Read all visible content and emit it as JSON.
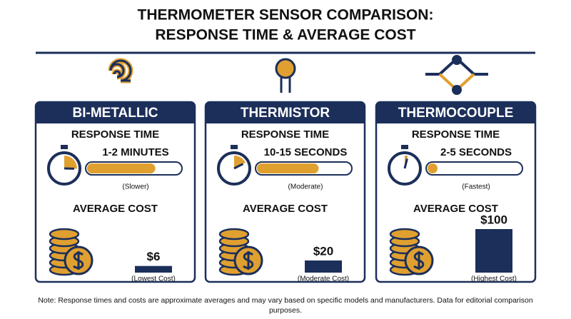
{
  "header": {
    "title_lines": [
      "THERMOMETER SENSOR COMPARISON:",
      "RESPONSE TIME & AVERAGE COST"
    ]
  },
  "cards": [
    {
      "name": "BI-METALLIC",
      "response_label": "RESPONSE TIME",
      "response_value": "1-2 MINUTES",
      "response_note": "(Slower)",
      "cost_label": "AVERAGE COST",
      "cost": {
        "value": 6,
        "label": "$6"
      },
      "cost_note": "(Lowest Cost)"
    },
    {
      "name": "THERMISTOR",
      "response_label": "RESPONSE TIME",
      "response_value": "10-15 SECONDS",
      "response_note": "(Moderate)",
      "cost_label": "AVERAGE COST",
      "cost": {
        "value": 20,
        "label": "$20"
      },
      "cost_note": "(Moderate Cost)"
    },
    {
      "name": "THERMOCOUPLE",
      "response_label": "RESPONSE TIME",
      "response_value": "2-5 SECONDS",
      "response_note": "(Fastest)",
      "cost_label": "AVERAGE COST",
      "cost": {
        "value": 100,
        "label": "$100"
      },
      "cost_note": "(Highest Cost)"
    }
  ],
  "footnote_lines": [
    "Note: Response times and costs are approximate averages and may vary based on specific models and manufacturers. Data for editorial comparison",
    "purposes."
  ]
}
